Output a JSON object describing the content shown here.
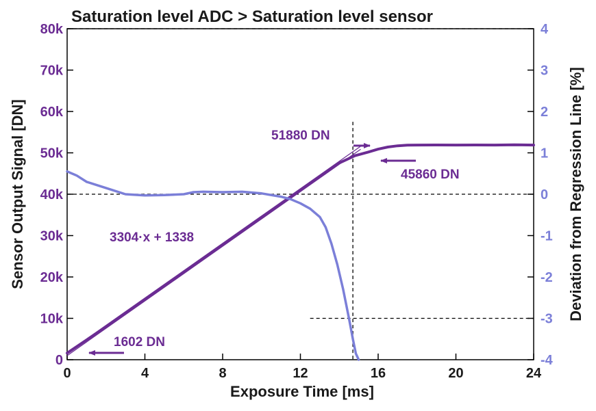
{
  "colors": {
    "purple": "#6b2c93",
    "blue": "#7b7fd8",
    "text": "#1a1a1a",
    "guide": "#000000"
  },
  "chart_data": {
    "type": "line",
    "title": "Saturation level ADC > Saturation level sensor",
    "xlabel": "Exposure Time [ms]",
    "ylabel_left": "Sensor Output Signal [DN]",
    "ylabel_right": "Deviation from Regression Line [%]",
    "xlim": [
      0,
      24
    ],
    "ylim_left": [
      0,
      80000
    ],
    "ylim_right": [
      -4,
      4
    ],
    "x_ticks": [
      "0",
      "4",
      "8",
      "12",
      "16",
      "20",
      "24"
    ],
    "x_tick_values": [
      0,
      4,
      8,
      12,
      16,
      20,
      24
    ],
    "y_left_ticks": [
      "0",
      "10k",
      "20k",
      "30k",
      "40k",
      "50k",
      "60k",
      "70k",
      "80k"
    ],
    "y_left_tick_values": [
      0,
      10000,
      20000,
      30000,
      40000,
      50000,
      60000,
      70000,
      80000
    ],
    "y_right_ticks": [
      "-4",
      "-3",
      "-2",
      "-1",
      "0",
      "1",
      "2",
      "3",
      "4"
    ],
    "y_right_tick_values": [
      -4,
      -3,
      -2,
      -1,
      0,
      1,
      2,
      3,
      4
    ],
    "regression": {
      "label": "3304·x + 1338",
      "slope": 3304,
      "intercept": 1338,
      "x_range": [
        0,
        15.1
      ]
    },
    "series": [
      {
        "axis": "left",
        "color": "#6b2c93",
        "x": [
          0,
          2,
          4,
          6,
          8,
          10,
          12,
          13,
          14,
          14.8,
          15.5,
          16,
          16.5,
          17,
          17.5,
          18,
          19,
          20,
          21,
          22,
          23,
          24
        ],
        "y": [
          1602,
          7950,
          14550,
          21150,
          27750,
          34350,
          40950,
          44250,
          47550,
          49300,
          50200,
          50900,
          51400,
          51700,
          51850,
          51880,
          51900,
          51880,
          51900,
          51880,
          51950,
          51880
        ]
      },
      {
        "axis": "right",
        "color": "#7b7fd8",
        "x": [
          0,
          0.5,
          1,
          2,
          3,
          4,
          5,
          6,
          6.5,
          7,
          8,
          9,
          10,
          11,
          11.5,
          12,
          12.5,
          13,
          13.3,
          13.6,
          13.9,
          14.2,
          14.5,
          14.7,
          14.85,
          15
        ],
        "y": [
          0.55,
          0.45,
          0.3,
          0.15,
          0.0,
          -0.03,
          -0.02,
          0.0,
          0.05,
          0.06,
          0.05,
          0.06,
          0.02,
          -0.06,
          -0.12,
          -0.22,
          -0.35,
          -0.55,
          -0.8,
          -1.2,
          -1.7,
          -2.3,
          -3.0,
          -3.5,
          -3.85,
          -4.0
        ]
      }
    ],
    "guides": {
      "y_left_dashed": [
        80000,
        40000
      ],
      "saturation_x": 14.7,
      "low_dashed_y": 10000,
      "low_dashed_x_start": 12.5
    },
    "annotations": [
      {
        "text": "51880 DN"
      },
      {
        "text": "45860 DN"
      },
      {
        "text": "3304·x + 1338"
      },
      {
        "text": "1602 DN"
      }
    ]
  }
}
